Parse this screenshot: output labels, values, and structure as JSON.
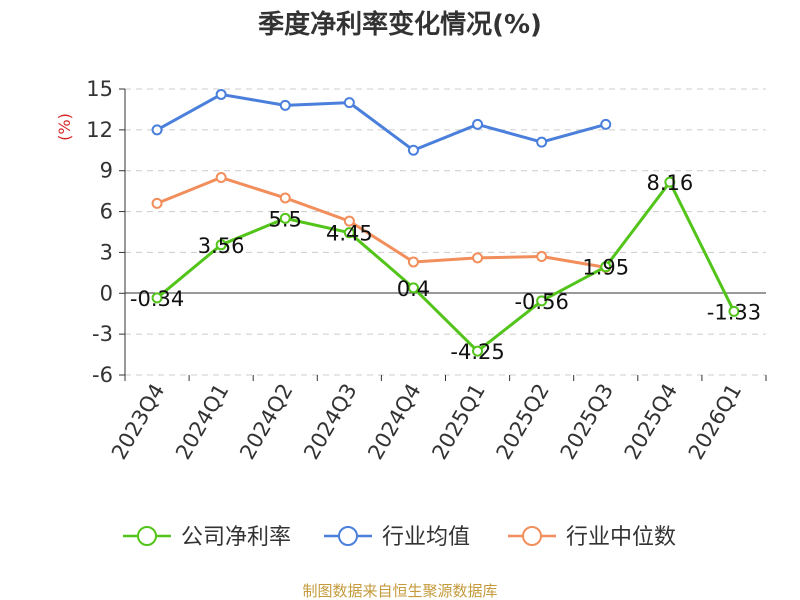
{
  "chart_data": {
    "type": "line",
    "title": "季度净利率变化情况(%)",
    "ylabel": "(%)",
    "categories": [
      "2023Q4",
      "2024Q1",
      "2024Q2",
      "2024Q3",
      "2024Q4",
      "2025Q1",
      "2025Q2",
      "2025Q3",
      "2025Q4",
      "2026Q1"
    ],
    "y_ticks": [
      15,
      12,
      9,
      6,
      3,
      0,
      -3,
      -6
    ],
    "ylim": [
      -6,
      15
    ],
    "grid": true,
    "legend_position": "bottom",
    "series": [
      {
        "name": "公司净利率",
        "color": "#52c41a",
        "values": [
          -0.34,
          3.56,
          5.5,
          4.45,
          0.4,
          -4.25,
          -0.56,
          1.95,
          8.16,
          -1.33
        ],
        "labels": [
          "-0.34",
          "3.56",
          "5.5",
          "4.45",
          "0.4",
          "-4.25",
          "-0.56",
          "1.95",
          "8.16",
          "-1.33"
        ]
      },
      {
        "name": "行业均值",
        "color": "#4a7fdc",
        "values": [
          12.0,
          14.6,
          13.8,
          14.0,
          10.5,
          12.4,
          11.1,
          12.4,
          null,
          null
        ]
      },
      {
        "name": "行业中位数",
        "color": "#f28e5b",
        "values": [
          6.6,
          8.5,
          7.0,
          5.3,
          2.3,
          2.6,
          2.7,
          1.9,
          null,
          null
        ]
      }
    ],
    "source": "制图数据来自恒生聚源数据库"
  }
}
